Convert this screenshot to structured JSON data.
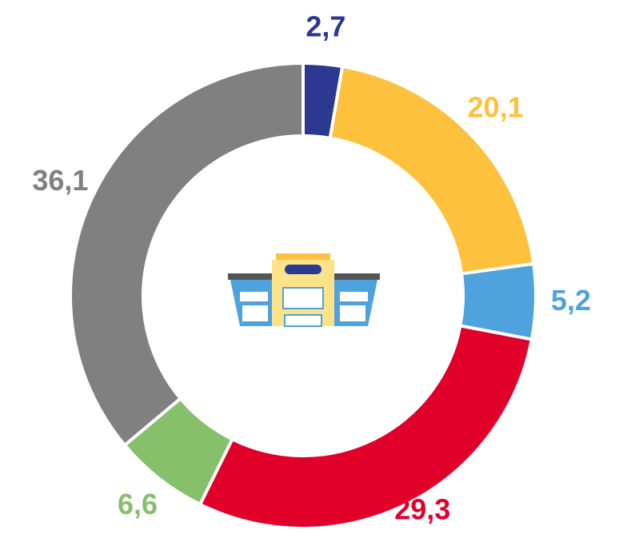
{
  "chart_data": {
    "type": "donut",
    "categories": [
      null,
      null,
      null,
      null,
      null,
      null
    ],
    "values": [
      2.7,
      20.1,
      5.2,
      29.3,
      6.6,
      36.1
    ],
    "value_labels": [
      "2,7",
      "20,1",
      "5,2",
      "29,3",
      "6,6",
      "36,1"
    ],
    "colors": [
      "#2b3990",
      "#fdc13e",
      "#4fa3dc",
      "#e0002a",
      "#86c06b",
      "#808080"
    ]
  }
}
